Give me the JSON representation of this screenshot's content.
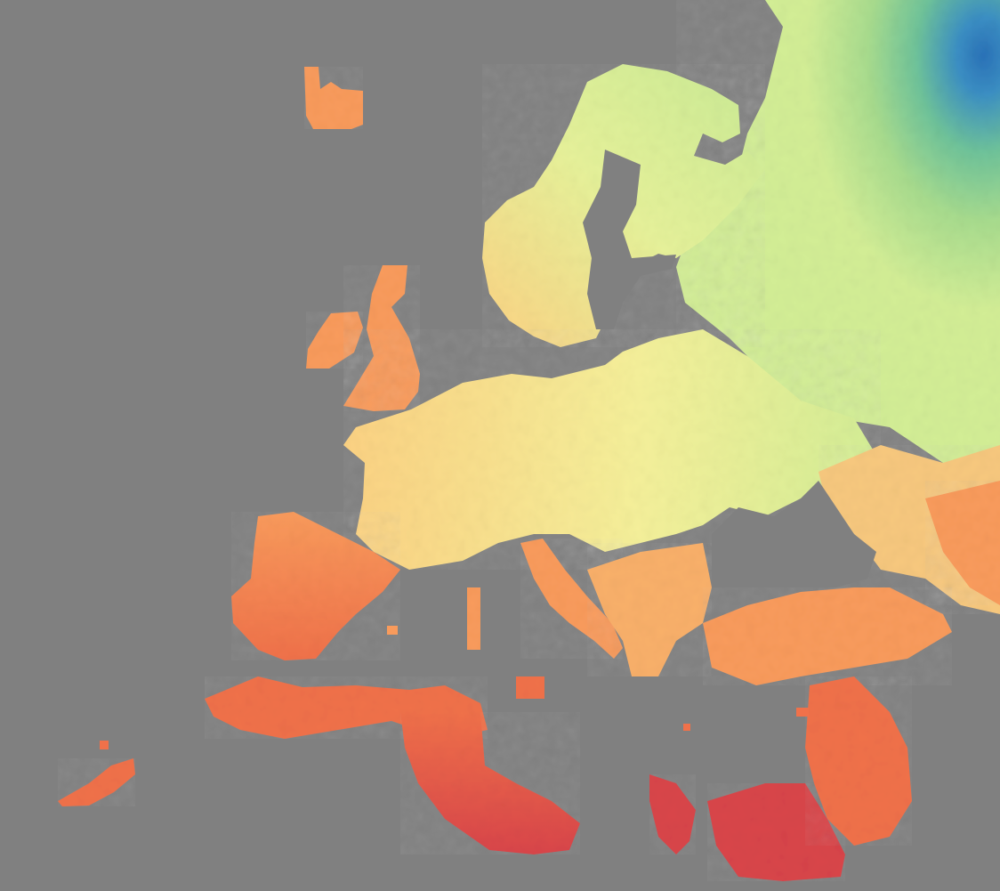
{
  "map": {
    "background_color": "#808080",
    "palette": {
      "very_hot": "#d9454a",
      "hot": "#f0714a",
      "warm": "#f99b5c",
      "mild": "#fcd283",
      "neutral": "#f5f09a",
      "cool": "#d3ee96",
      "cold": "#a8dc8e",
      "colder": "#6fc39a",
      "coldest": "#3b8fc4",
      "extreme_cold": "#2a72b8"
    },
    "regions": [
      "iceland",
      "ireland",
      "great-britain",
      "scandinavia-north",
      "northern-russia",
      "central-europe",
      "eastern-europe",
      "iberian-peninsula",
      "italy",
      "balkans",
      "anatolia",
      "maghreb",
      "libya",
      "egypt",
      "levant",
      "arabian-peninsula",
      "canary-islands"
    ]
  }
}
